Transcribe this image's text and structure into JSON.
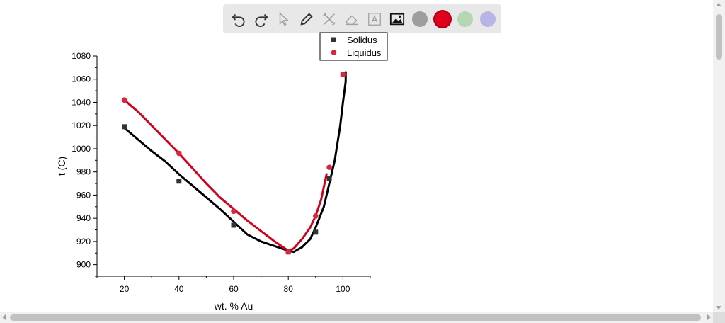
{
  "toolbar": {
    "tools": [
      "undo-icon",
      "redo-icon",
      "pointer-icon",
      "pencil-icon",
      "tools-icon",
      "eraser-icon",
      "text-icon",
      "image-icon"
    ],
    "colors": [
      "#9e9e9e",
      "#e0001b",
      "#b5d6b2",
      "#b9b4e6"
    ]
  },
  "chart_data": {
    "type": "line",
    "xlabel": "wt. % Au",
    "ylabel": "t (C)",
    "xlim": [
      10,
      110
    ],
    "ylim": [
      890,
      1080
    ],
    "x_ticks": [
      20,
      40,
      60,
      80,
      100
    ],
    "y_ticks": [
      900,
      920,
      940,
      960,
      980,
      1000,
      1020,
      1040,
      1060,
      1080
    ],
    "grid": false,
    "legend_position": "top",
    "series": [
      {
        "name": "Solidus",
        "color": "#333333",
        "marker": "square",
        "x": [
          20,
          40,
          60,
          80,
          90,
          95,
          100
        ],
        "y": [
          1019,
          972,
          934,
          911,
          928,
          974,
          1064
        ]
      },
      {
        "name": "Liquidus",
        "color": "#d9263a",
        "marker": "circle",
        "x": [
          20,
          40,
          60,
          80,
          90,
          95,
          100
        ],
        "y": [
          1042,
          996,
          946,
          911,
          942,
          984,
          1064
        ]
      }
    ],
    "annotation_curves": [
      {
        "color": "#000000",
        "x": [
          20,
          25,
          30,
          35,
          40,
          45,
          50,
          55,
          60,
          65,
          70,
          75,
          80,
          82,
          85,
          88,
          90,
          93,
          95,
          97,
          99,
          100,
          101,
          101
        ],
        "y": [
          1018,
          1008,
          998,
          989,
          978,
          968,
          958,
          948,
          937,
          926,
          920,
          916,
          912,
          911,
          915,
          922,
          932,
          950,
          970,
          990,
          1020,
          1040,
          1058,
          1066
        ]
      },
      {
        "color": "#d0021b",
        "x": [
          20,
          25,
          30,
          35,
          40,
          45,
          50,
          55,
          60,
          65,
          70,
          75,
          80,
          82,
          85,
          88,
          90,
          92,
          94
        ],
        "y": [
          1042,
          1032,
          1020,
          1008,
          996,
          983,
          970,
          958,
          948,
          938,
          929,
          920,
          912,
          914,
          922,
          932,
          942,
          956,
          978
        ]
      }
    ]
  }
}
